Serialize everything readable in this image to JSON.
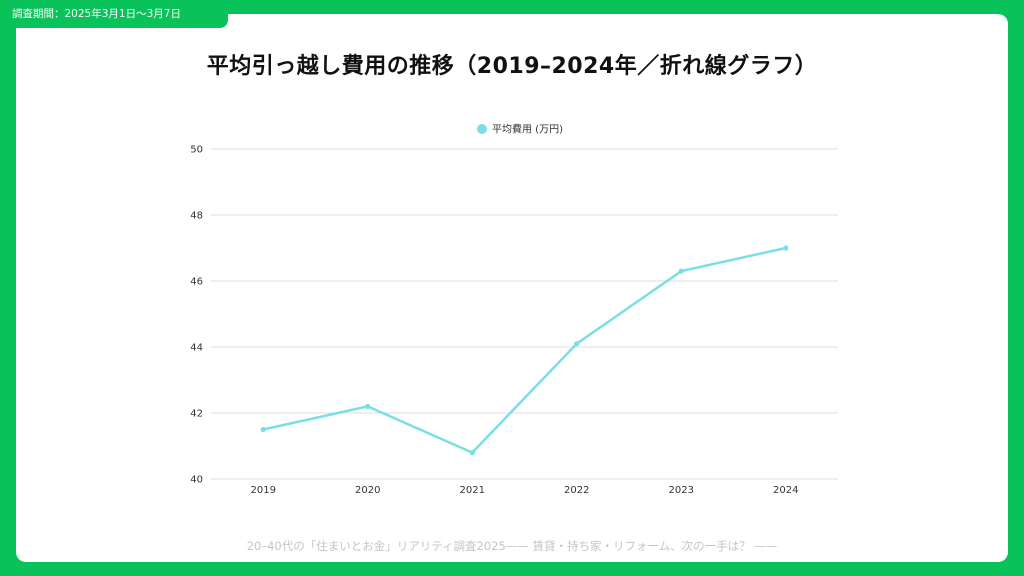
{
  "header": {
    "period_label": "調査期間：2025年3月1日〜3月7日"
  },
  "footer": {
    "text": "20–40代の「住まいとお金」リアリティ調査2025—— 賃貸・持ち家・リフォーム、次の一手は？ ——"
  },
  "colors": {
    "frame": "#09c35a",
    "line": "#7adfe2",
    "grid": "#dddddd"
  },
  "chart_data": {
    "type": "line",
    "title": "平均引っ越し費用の推移（2019–2024年／折れ線グラフ）",
    "categories": [
      "2019",
      "2020",
      "2021",
      "2022",
      "2023",
      "2024"
    ],
    "series": [
      {
        "name": "平均費用 (万円)",
        "values": [
          41.5,
          42.2,
          40.8,
          44.1,
          46.3,
          47.0
        ]
      }
    ],
    "y_ticks": [
      "40",
      "42",
      "44",
      "46",
      "48",
      "50"
    ],
    "ylim": [
      40,
      50
    ],
    "grid": true,
    "legend_position": "top-center"
  }
}
